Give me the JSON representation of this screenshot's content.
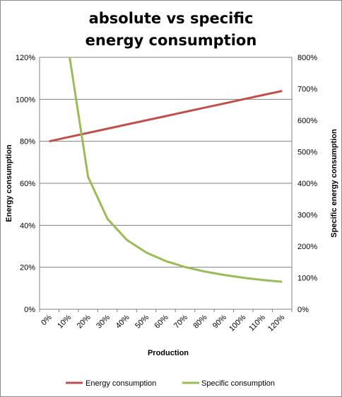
{
  "chart_data": {
    "type": "line",
    "title_lines": [
      "absolute vs specific",
      "energy consumption"
    ],
    "xlabel": "Production",
    "ylabel_left": "Energy consumption",
    "ylabel_right": "Specific energy consumption",
    "x": [
      "0%",
      "10%",
      "20%",
      "30%",
      "40%",
      "50%",
      "60%",
      "70%",
      "80%",
      "90%",
      "100%",
      "110%",
      "120%"
    ],
    "ylim_left": [
      0,
      120
    ],
    "ylim_right": [
      0,
      800
    ],
    "yticks_left": [
      "0%",
      "20%",
      "40%",
      "60%",
      "80%",
      "100%",
      "120%"
    ],
    "yticks_right": [
      "0%",
      "100%",
      "200%",
      "300%",
      "400%",
      "500%",
      "600%",
      "700%",
      "800%"
    ],
    "grid": "horizontal",
    "legend_position": "bottom",
    "series": [
      {
        "name": "Energy consumption",
        "axis": "left",
        "color": "#c0504d",
        "values": [
          80,
          82,
          84,
          86,
          88,
          90,
          92,
          94,
          96,
          98,
          100,
          102,
          104
        ]
      },
      {
        "name": "Specific consumption",
        "axis": "right",
        "color": "#9bbb59",
        "values": [
          null,
          820,
          420,
          287,
          220,
          180,
          153,
          134,
          120,
          109,
          100,
          93,
          87
        ]
      }
    ]
  }
}
